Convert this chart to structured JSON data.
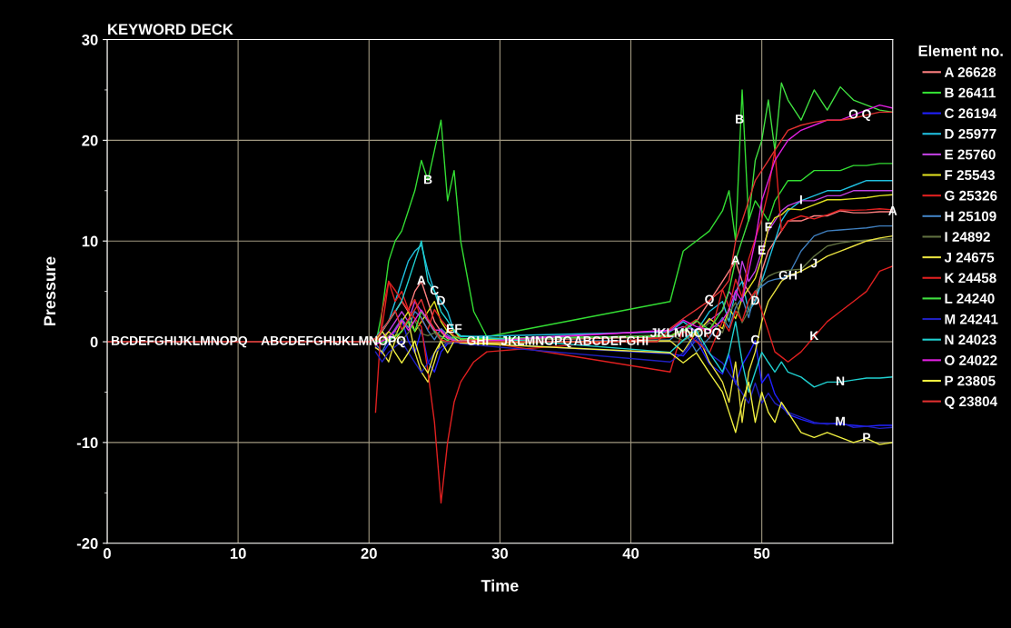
{
  "chart_data": {
    "type": "line",
    "title": "KEYWORD DECK",
    "xlabel": "Time",
    "ylabel": "Pressure",
    "legend_title": "Element no.",
    "legend": "right",
    "grid": true,
    "marker": "none",
    "line_style": "solid",
    "xlim": [
      0,
      60
    ],
    "xticks": [
      0,
      10,
      20,
      30,
      40,
      50
    ],
    "ylim": [
      -20,
      30
    ],
    "yticks": [
      -20,
      {
        "value": -15,
        "label": null
      },
      -10,
      {
        "value": -5,
        "label": null
      },
      0,
      {
        "value": 5,
        "label": null
      },
      10,
      {
        "value": 15,
        "label": null
      },
      20,
      {
        "value": 25,
        "label": null
      },
      30
    ],
    "x": [
      0,
      20,
      20.5,
      21,
      21.5,
      22,
      22.5,
      23,
      23.5,
      24,
      24.5,
      25,
      25.5,
      26,
      26.5,
      27,
      28,
      29,
      30,
      33,
      36,
      39,
      42,
      43,
      44,
      45,
      46,
      47,
      47.5,
      48,
      48.5,
      49,
      49.5,
      50,
      50.5,
      51,
      51.5,
      52,
      53,
      54,
      55,
      56,
      57,
      58,
      59,
      60
    ],
    "series": [
      {
        "name": "A 26628",
        "color": "#ff8080",
        "x": [
          20.5,
          21,
          21.5,
          22,
          22.5,
          23,
          23.5,
          24,
          24.5,
          25,
          25.5,
          26,
          26.5,
          27,
          43,
          44,
          45,
          46,
          47,
          47.5,
          48,
          48.5,
          49,
          49.5,
          50,
          50.5,
          51,
          51.5,
          52,
          53,
          54,
          55,
          56,
          57,
          58,
          59,
          60
        ],
        "values": [
          0.2,
          1,
          2,
          3,
          4,
          3,
          5,
          6,
          4,
          2,
          1,
          0.3,
          0.15,
          0.05,
          0.5,
          1,
          2,
          4,
          6,
          7,
          8,
          6,
          5,
          4,
          7,
          9,
          10,
          11,
          12,
          12,
          12.5,
          12.5,
          13,
          12.8,
          12.8,
          12.9,
          12.9
        ]
      },
      {
        "name": "B 26411",
        "color": "#33dd33",
        "x": [
          20.5,
          21,
          21.5,
          22,
          22.5,
          23,
          23.5,
          24,
          24.5,
          25,
          25.5,
          26,
          26.5,
          27,
          28,
          29,
          43,
          44,
          45,
          46,
          47,
          47.5,
          48,
          48.5,
          49,
          49.5,
          50,
          50.5,
          51,
          51.5,
          52,
          53,
          54,
          55,
          56,
          57,
          58,
          59,
          60
        ],
        "values": [
          -0.3,
          3,
          8,
          10,
          11,
          13,
          15,
          18,
          16,
          19,
          22,
          14,
          17,
          10,
          3,
          0.5,
          4,
          9,
          10,
          11,
          13,
          15,
          10,
          25,
          12,
          14,
          13,
          12,
          14,
          15,
          16,
          16,
          17,
          17,
          17,
          17.5,
          17.5,
          17.7,
          17.7
        ]
      },
      {
        "name": "C 26194",
        "color": "#2020ff",
        "x": [
          20.5,
          21,
          21.5,
          22,
          22.5,
          23,
          23.5,
          24,
          24.5,
          25,
          25.5,
          26,
          26.5,
          27,
          43,
          44,
          45,
          46,
          47,
          47.5,
          48,
          48.5,
          49,
          49.5,
          50,
          50.5,
          51,
          51.5,
          52,
          53,
          54,
          55,
          56,
          57,
          58,
          59,
          60
        ],
        "values": [
          -0.5,
          -1.2,
          -0.2,
          1.1,
          2.2,
          0.1,
          -1.1,
          1.2,
          -2,
          -3,
          -1,
          -0.2,
          -0.1,
          -0.05,
          -1.2,
          -1.4,
          0.2,
          -2.2,
          -3.2,
          -1.3,
          -4.2,
          -2.3,
          -1.2,
          0.1,
          -4.1,
          -3.2,
          -5.2,
          -6.2,
          -7.2,
          -7.7,
          -8.1,
          -8.1,
          -8.2,
          -8.3,
          -8.4,
          -8.3,
          -8.3
        ]
      },
      {
        "name": "D 25977",
        "color": "#20c0e0",
        "x": [
          20.5,
          21,
          21.5,
          22,
          22.5,
          23,
          23.5,
          24,
          24.5,
          25,
          25.5,
          26,
          26.5,
          27,
          43,
          44,
          45,
          46,
          47,
          47.5,
          48,
          48.5,
          49,
          49.5,
          50,
          50.5,
          51,
          51.5,
          52,
          53,
          54,
          55,
          56,
          57,
          58,
          59,
          60
        ],
        "values": [
          0.4,
          1.3,
          2,
          4,
          6,
          8,
          9,
          9.6,
          7,
          5,
          4,
          3,
          1,
          0.5,
          1,
          2,
          1,
          3,
          4,
          2,
          5,
          6,
          3,
          4,
          6,
          8,
          10,
          12,
          13,
          14,
          14.5,
          15,
          15,
          15.5,
          16,
          16,
          16
        ]
      },
      {
        "name": "E 25760",
        "color": "#c040e0",
        "x": [
          20.5,
          21,
          21.5,
          22,
          22.5,
          23,
          23.5,
          24,
          24.5,
          25,
          25.5,
          26,
          26.5,
          27,
          43,
          44,
          45,
          46,
          47,
          47.5,
          48,
          48.5,
          49,
          49.5,
          50,
          50.5,
          51,
          51.5,
          52,
          53,
          54,
          55,
          56,
          57,
          58,
          59,
          60
        ],
        "values": [
          -0.1,
          0.5,
          1,
          2,
          3,
          2,
          4,
          3,
          2,
          1,
          0.5,
          0.5,
          0.25,
          0.1,
          1.1,
          1.5,
          1.1,
          2.1,
          3.1,
          5,
          4.1,
          8,
          6,
          7,
          9,
          11,
          12,
          13,
          13.5,
          14,
          14,
          14.5,
          14.5,
          15,
          15,
          15,
          15
        ]
      },
      {
        "name": "F 25543",
        "color": "#e0e020",
        "x": [
          20.5,
          21,
          21.5,
          22,
          22.5,
          23,
          23.5,
          24,
          24.5,
          25,
          25.5,
          26,
          26.5,
          27,
          43,
          44,
          45,
          46,
          47,
          47.5,
          48,
          48.5,
          49,
          49.5,
          50,
          50.5,
          51,
          51.5,
          52,
          53,
          54,
          55,
          56,
          57,
          58,
          59,
          60
        ],
        "values": [
          0.3,
          0.1,
          1,
          0.5,
          2,
          3,
          1,
          2,
          3,
          4,
          2,
          1,
          1.2,
          0.2,
          0.6,
          1.2,
          0.7,
          2.3,
          1.3,
          3.3,
          2.3,
          4.3,
          5.3,
          6.3,
          8.3,
          11.3,
          12.3,
          12.6,
          13.2,
          13.1,
          13.6,
          14.1,
          14.1,
          14.2,
          14.3,
          14.5,
          14.6
        ]
      },
      {
        "name": "G 25326",
        "color": "#e02020",
        "x": [
          20.5,
          21,
          21.5,
          22,
          22.5,
          23,
          23.5,
          24,
          24.5,
          25,
          25.5,
          26,
          26.5,
          27,
          43,
          44,
          45,
          46,
          47,
          47.5,
          48,
          48.5,
          49,
          49.5,
          50,
          50.5,
          51,
          51.5,
          52,
          53,
          54,
          55,
          56,
          57,
          58,
          59,
          60
        ],
        "values": [
          -0.4,
          1.4,
          6,
          4,
          5,
          3.2,
          4.2,
          2.2,
          1.2,
          3.2,
          2.2,
          1.4,
          0.6,
          0.35,
          -3,
          1.4,
          2.2,
          0.3,
          5.2,
          3.4,
          6.2,
          4.4,
          8.2,
          10.2,
          12.2,
          15,
          19,
          11,
          12,
          12.5,
          12.2,
          12.6,
          13.1,
          13.05,
          13.1,
          13.2,
          13.1
        ]
      },
      {
        "name": "H 25109",
        "color": "#4080c0",
        "x": [
          20.5,
          21,
          21.5,
          22,
          22.5,
          23,
          23.5,
          24,
          24.5,
          25,
          25.5,
          26,
          26.5,
          27,
          43,
          44,
          45,
          46,
          47,
          47.5,
          48,
          48.5,
          49,
          49.5,
          50,
          50.5,
          51,
          51.5,
          52,
          53,
          54,
          55,
          56,
          57,
          58,
          59,
          60
        ],
        "values": [
          -0.2,
          -1,
          0.3,
          1.3,
          2.3,
          1.4,
          3,
          2.4,
          1.1,
          0.2,
          1.3,
          0.7,
          0.3,
          -0.1,
          0.2,
          1.3,
          -1,
          0.4,
          2.4,
          1.4,
          3.4,
          4.4,
          2.4,
          5,
          5.5,
          6,
          6.2,
          6.3,
          6.5,
          9,
          10.5,
          11,
          11.1,
          11.2,
          11.3,
          11.5,
          11.5
        ]
      },
      {
        "name": "I 24892",
        "color": "#607040",
        "x": [
          20.5,
          21,
          21.5,
          22,
          22.5,
          23,
          23.5,
          24,
          24.5,
          25,
          25.5,
          26,
          26.5,
          27,
          43,
          44,
          45,
          46,
          47,
          47.5,
          48,
          48.5,
          49,
          49.5,
          50,
          50.5,
          51,
          51.5,
          52,
          53,
          54,
          55,
          56,
          57,
          58,
          59,
          60
        ],
        "values": [
          0.05,
          0.15,
          0.6,
          1.1,
          0.1,
          0.9,
          2.1,
          0.8,
          0.6,
          0.9,
          0.1,
          -0.2,
          0.05,
          -0.05,
          0.7,
          0.1,
          0.8,
          1.9,
          0.9,
          2.9,
          3.9,
          1.9,
          3.1,
          4.9,
          5.9,
          6.5,
          6.8,
          7,
          7.1,
          7.2,
          8.5,
          9.5,
          9.8,
          10,
          10.1,
          10.2,
          10.2
        ]
      },
      {
        "name": "J 24675",
        "color": "#e8e040",
        "x": [
          20.5,
          21,
          21.5,
          22,
          22.5,
          23,
          23.5,
          24,
          24.5,
          25,
          25.5,
          26,
          26.5,
          27,
          43,
          44,
          45,
          46,
          47,
          47.5,
          48,
          48.5,
          49,
          49.5,
          50,
          50.5,
          51,
          51.5,
          52,
          53,
          54,
          55,
          56,
          57,
          58,
          59,
          60
        ],
        "values": [
          -0.6,
          -1,
          -2,
          0.2,
          1.1,
          2.1,
          -1,
          -3,
          -4,
          -2,
          0.15,
          1.1,
          0.45,
          -0.15,
          0.1,
          -1,
          1,
          -2,
          -4,
          -6,
          -2,
          -8,
          -3,
          -1,
          2,
          4,
          5,
          6,
          6.5,
          7,
          7.7,
          8.5,
          9,
          9.5,
          10,
          10.3,
          10.5
        ]
      },
      {
        "name": "K 24458",
        "color": "#e02020",
        "x": [
          20.5,
          21,
          21.5,
          22,
          22.5,
          23,
          23.5,
          24,
          24.5,
          25,
          25.5,
          26,
          26.5,
          27,
          28,
          29,
          43,
          44,
          45,
          46,
          47,
          47.5,
          48,
          48.5,
          49,
          49.5,
          50,
          50.5,
          51,
          51.5,
          52,
          53,
          54,
          55,
          56,
          57,
          58,
          59,
          60
        ],
        "values": [
          -7,
          3,
          6,
          5.1,
          4.1,
          3.1,
          2.3,
          1.5,
          -3,
          -8,
          -16,
          -10,
          -6,
          -4,
          -2,
          -1,
          0.45,
          1.05,
          0.05,
          -1.1,
          2.05,
          1.05,
          3.05,
          2.05,
          4.05,
          5.05,
          3.05,
          1.05,
          -1,
          -1.5,
          -2,
          -1,
          0.5,
          2,
          3,
          4,
          5,
          7,
          7.5
        ]
      },
      {
        "name": "L 24240",
        "color": "#40e040",
        "x": [
          20.5,
          21,
          21.5,
          22,
          22.5,
          23,
          23.5,
          24,
          24.5,
          25,
          25.5,
          26,
          26.5,
          27,
          43,
          44,
          45,
          46,
          47,
          47.5,
          48,
          48.5,
          49,
          49.5,
          50,
          50.5,
          51,
          51.5,
          52,
          53,
          54,
          55,
          56,
          57,
          58,
          59,
          60
        ],
        "values": [
          0.1,
          -0.1,
          0.15,
          0.5,
          1,
          2.05,
          1.05,
          3.05,
          2.05,
          1.05,
          0.55,
          0.1,
          0.5,
          0.3,
          0.55,
          1.1,
          2.1,
          1.2,
          3.2,
          5.1,
          8.1,
          10.1,
          12.1,
          18,
          20,
          24,
          19,
          25.7,
          24,
          22,
          25,
          23,
          25.3,
          24,
          23.5,
          23,
          22.8
        ]
      },
      {
        "name": "M 24241",
        "color": "#2020c0",
        "x": [
          20.5,
          21,
          21.5,
          22,
          22.5,
          23,
          23.5,
          24,
          24.5,
          25,
          25.5,
          26,
          26.5,
          27,
          43,
          44,
          45,
          46,
          47,
          47.5,
          48,
          48.5,
          49,
          49.5,
          50,
          50.5,
          51,
          51.5,
          52,
          53,
          54,
          55,
          56,
          57,
          58,
          59,
          60
        ],
        "values": [
          -1,
          -2,
          -1.05,
          -0.5,
          0.05,
          -1.05,
          -2.05,
          -3.05,
          -2.1,
          -1.1,
          -0.55,
          -0.1,
          0.1,
          -0.2,
          -2,
          -1.1,
          0.5,
          -1.2,
          -2.1,
          -3.1,
          -4.1,
          -5.1,
          -6.1,
          -4.1,
          -6.1,
          -5.1,
          -6.1,
          -6.5,
          -7,
          -7.5,
          -8,
          -8.2,
          -8,
          -8.5,
          -8.4,
          -8.6,
          -8.5
        ]
      },
      {
        "name": "N 24023",
        "color": "#20d0d0",
        "x": [
          20.5,
          21,
          21.5,
          22,
          22.5,
          23,
          23.5,
          24,
          24.5,
          25,
          25.5,
          26,
          26.5,
          27,
          43,
          44,
          45,
          46,
          47,
          47.5,
          48,
          48.5,
          49,
          49.5,
          50,
          50.5,
          51,
          51.5,
          52,
          53,
          54,
          55,
          56,
          57,
          58,
          59,
          60
        ],
        "values": [
          0.25,
          1,
          2.1,
          3,
          4.05,
          6,
          8,
          10,
          6,
          5,
          3,
          2.1,
          1.1,
          0.6,
          -1.05,
          0.15,
          1.2,
          -1.1,
          -3,
          -1.05,
          2,
          -2,
          -5,
          -3,
          -1.05,
          -2.05,
          -3,
          -2,
          -3,
          -3.5,
          -4.5,
          -4,
          -4,
          -3.8,
          -3.6,
          -3.6,
          -3.5
        ]
      },
      {
        "name": "O 24022",
        "color": "#e020e0",
        "x": [
          20.5,
          21,
          21.5,
          22,
          22.5,
          23,
          23.5,
          24,
          24.5,
          25,
          25.5,
          26,
          26.5,
          27,
          43,
          44,
          45,
          46,
          47,
          47.5,
          48,
          48.5,
          49,
          49.5,
          50,
          50.5,
          51,
          51.5,
          52,
          53,
          54,
          55,
          56,
          57,
          58,
          59,
          60
        ],
        "values": [
          -0.25,
          0.05,
          0.45,
          1.15,
          2.15,
          1.15,
          2.15,
          3.15,
          2.15,
          1.15,
          1.15,
          0.45,
          0.08,
          -0.08,
          1.15,
          2.15,
          1.5,
          1.15,
          2.15,
          3.15,
          5.05,
          4,
          7,
          10,
          14,
          16,
          18,
          19,
          20,
          21,
          21.5,
          22,
          22,
          22.5,
          23,
          23.5,
          23.2
        ]
      },
      {
        "name": "P 23805",
        "color": "#f0f040",
        "x": [
          20.5,
          21,
          21.5,
          22,
          22.5,
          23,
          23.5,
          24,
          24.5,
          25,
          25.5,
          26,
          26.5,
          27,
          43,
          44,
          45,
          46,
          47,
          47.5,
          48,
          48.5,
          49,
          49.5,
          50,
          50.5,
          51,
          51.5,
          52,
          53,
          54,
          55,
          56,
          57,
          58,
          59,
          60
        ],
        "values": [
          0.15,
          1.05,
          0.08,
          -1.1,
          -2.1,
          -1.1,
          0.08,
          -2.1,
          -3.1,
          -1.1,
          0.08,
          -1.1,
          0.08,
          -0.1,
          -1.1,
          -2.1,
          -1.1,
          -3.1,
          -5,
          -7,
          -9,
          -6,
          -4,
          -8,
          -5,
          -7,
          -8,
          -6,
          -7,
          -9,
          -9.5,
          -9,
          -9.5,
          -10,
          -9.6,
          -10.2,
          -10
        ]
      },
      {
        "name": "Q 23804",
        "color": "#e03030",
        "values": [
          0,
          0,
          0.35,
          1.1,
          2.1,
          3.1,
          1.2,
          2.2,
          3.2,
          4.2,
          2.3,
          1.3,
          0.2,
          0.02,
          0.04,
          -0.02,
          0,
          0,
          0,
          0,
          0,
          0,
          0,
          1.3,
          2.3,
          3.2,
          4.1,
          5.2,
          6.1,
          10,
          12,
          14,
          16,
          17,
          18,
          19,
          20,
          21,
          21.5,
          21.8,
          22,
          22,
          22.2,
          22.5,
          22.8,
          22.8
        ]
      }
    ],
    "annotations": [
      {
        "text": "BCDEFGHI",
        "x": 2.8,
        "y": 0
      },
      {
        "text": "JKLMNOPQ",
        "x": 8.0,
        "y": 0
      },
      {
        "text": "ABCDEFGHI",
        "x": 14.6,
        "y": 0
      },
      {
        "text": "JKLMNOPQ",
        "x": 20.1,
        "y": 0
      },
      {
        "text": "GHI",
        "x": 28.3,
        "y": 0
      },
      {
        "text": "JKLMNOPQ",
        "x": 32.8,
        "y": 0
      },
      {
        "text": "ABCDEFGHI",
        "x": 38.5,
        "y": 0
      },
      {
        "text": "JKLMNOPQ",
        "x": 44.2,
        "y": 0.8
      },
      {
        "text": "A",
        "x": 24,
        "y": 6
      },
      {
        "text": "B",
        "x": 24.5,
        "y": 16
      },
      {
        "text": "C",
        "x": 25,
        "y": 5
      },
      {
        "text": "D",
        "x": 25.5,
        "y": 4
      },
      {
        "text": "EF",
        "x": 26.5,
        "y": 1.2
      },
      {
        "text": "B",
        "x": 48.3,
        "y": 22
      },
      {
        "text": "A",
        "x": 48,
        "y": 8
      },
      {
        "text": "Q",
        "x": 46,
        "y": 4.1
      },
      {
        "text": "C",
        "x": 49.5,
        "y": 0.1
      },
      {
        "text": "D",
        "x": 49.5,
        "y": 4
      },
      {
        "text": "E",
        "x": 50,
        "y": 9
      },
      {
        "text": "F",
        "x": 50.5,
        "y": 11.3
      },
      {
        "text": "GH",
        "x": 52,
        "y": 6.5
      },
      {
        "text": "I",
        "x": 53,
        "y": 7.2
      },
      {
        "text": "J",
        "x": 54,
        "y": 7.7
      },
      {
        "text": "I",
        "x": 53,
        "y": 14
      },
      {
        "text": "K",
        "x": 54,
        "y": 0.5
      },
      {
        "text": "N",
        "x": 56,
        "y": -4
      },
      {
        "text": "M",
        "x": 56,
        "y": -8
      },
      {
        "text": "P",
        "x": 58,
        "y": -9.6
      },
      {
        "text": "O",
        "x": 57,
        "y": 22.5
      },
      {
        "text": "Q",
        "x": 58,
        "y": 22.5
      },
      {
        "text": "A",
        "x": 60,
        "y": 12.9
      }
    ]
  }
}
